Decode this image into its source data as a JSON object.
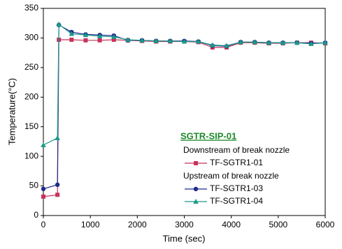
{
  "chart_data": {
    "type": "line",
    "x_label": "Time (sec)",
    "y_label": "Temperature(°C)",
    "legend_title": "SGTR-SIP-01",
    "legend_headings": [
      "Downstream of break nozzle",
      "Upstream of break nozzle"
    ],
    "x": [
      0,
      300,
      330,
      600,
      900,
      1200,
      1500,
      1800,
      2100,
      2400,
      2700,
      3000,
      3300,
      3600,
      3900,
      4200,
      4500,
      4800,
      5100,
      5400,
      5700,
      6000
    ],
    "series": [
      {
        "name": "TF-SGTR1-01",
        "color": "#c8325a",
        "marker": "square",
        "values": [
          32,
          35,
          297,
          297,
          296,
          296,
          297,
          296,
          295,
          294,
          294,
          294,
          293,
          284,
          284,
          292,
          292,
          291,
          291,
          292,
          292,
          291
        ]
      },
      {
        "name": "TF-SGTR1-03",
        "color": "#1f2a8c",
        "marker": "circle",
        "values": [
          45,
          52,
          322,
          310,
          306,
          305,
          304,
          296,
          296,
          295,
          295,
          295,
          294,
          287,
          286,
          293,
          293,
          292,
          292,
          292,
          291,
          292
        ]
      },
      {
        "name": "TF-SGTR1-04",
        "color": "#1a9a8a",
        "marker": "triangle",
        "values": [
          119,
          131,
          323,
          307,
          305,
          303,
          302,
          297,
          296,
          295,
          295,
          294,
          294,
          288,
          287,
          293,
          293,
          292,
          292,
          292,
          290,
          292
        ]
      }
    ],
    "xlim": [
      0,
      6000
    ],
    "xticks": [
      0,
      1000,
      2000,
      3000,
      4000,
      5000,
      6000
    ],
    "ylim": [
      0,
      350
    ],
    "yticks": [
      0,
      50,
      100,
      150,
      200,
      250,
      300,
      350
    ]
  }
}
